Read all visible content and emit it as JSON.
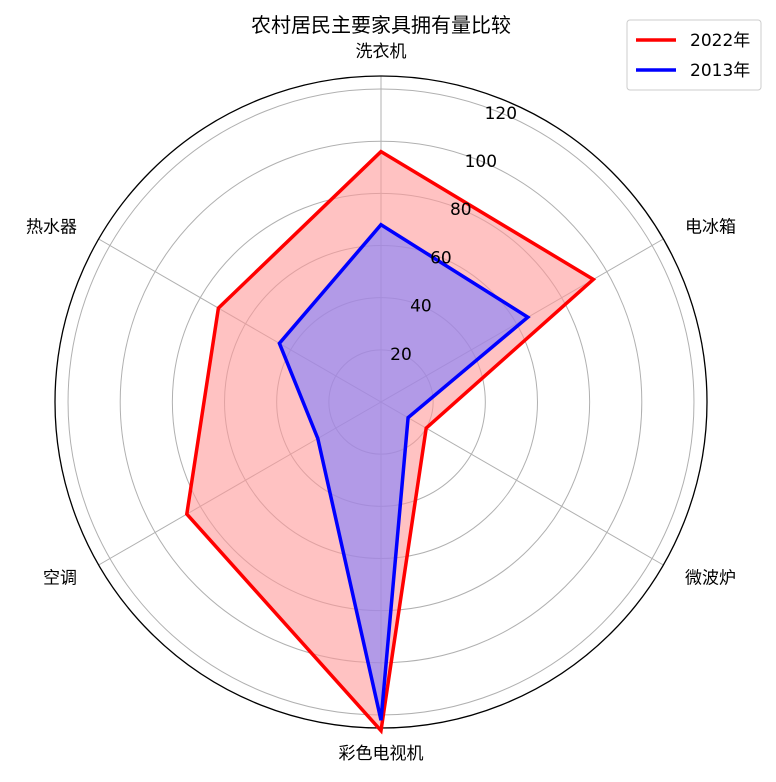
{
  "chart_data": {
    "type": "radar",
    "title": "农村居民主要家具拥有量比较",
    "categories": [
      "洗衣机",
      "电冰箱",
      "微波炉",
      "彩色电视机",
      "空调",
      "热水器"
    ],
    "radial_ticks": [
      "20",
      "40",
      "60",
      "80",
      "100",
      "120"
    ],
    "rlim": [
      0,
      125
    ],
    "grid": true,
    "legend_position": "top-right",
    "series": [
      {
        "name": "2022年",
        "values": [
          96,
          94,
          20,
          126,
          86,
          72
        ],
        "color": "#ff0000",
        "fill": "#ff9999"
      },
      {
        "name": "2013年",
        "values": [
          68,
          65,
          12,
          122,
          28,
          45
        ],
        "color": "#0000ff",
        "fill": "#7f7fff"
      }
    ]
  }
}
